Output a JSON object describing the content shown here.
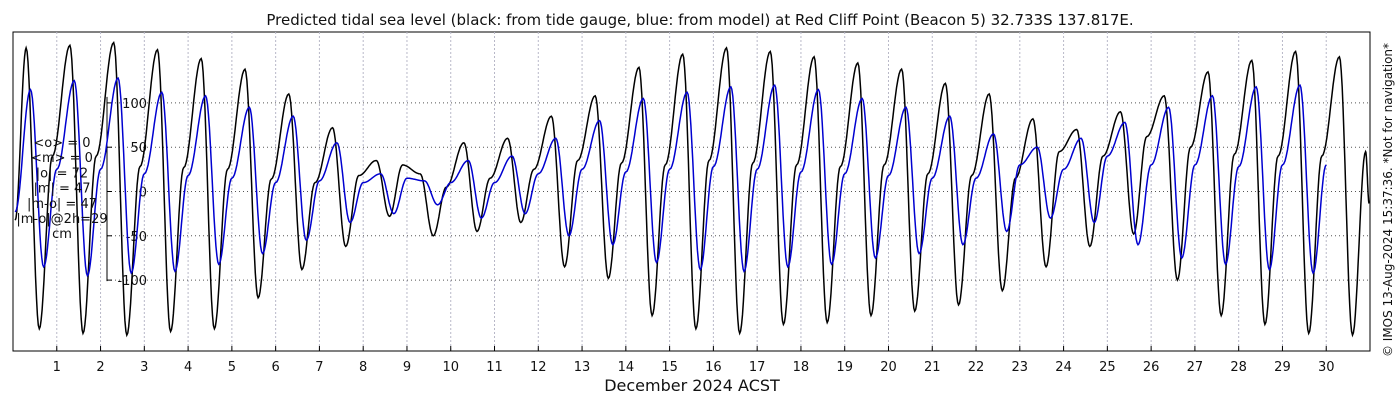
{
  "chart_data": {
    "type": "line",
    "title": "Predicted tidal sea level (black: from tide gauge, blue: from model) at Red Cliff Point (Beacon 5) 32.733S 137.817E.",
    "xlabel": "December 2024 ACST",
    "ylabel": "",
    "x_ticks": [
      "1",
      "2",
      "3",
      "4",
      "5",
      "6",
      "7",
      "8",
      "9",
      "10",
      "11",
      "12",
      "13",
      "14",
      "15",
      "16",
      "17",
      "18",
      "19",
      "20",
      "21",
      "22",
      "23",
      "24",
      "25",
      "26",
      "27",
      "28",
      "29",
      "30"
    ],
    "xlim": [
      0,
      31
    ],
    "y_ticks": [
      100,
      50,
      0,
      -50,
      -100
    ],
    "y_tick_labels": [
      "100",
      "50",
      "0",
      "-50",
      "-100"
    ],
    "ylim": [
      -180,
      180
    ],
    "grid": "dotted-vertical-and-horizontal",
    "stats": [
      "<o> = 0",
      "<m> = 0",
      "|o| = 72",
      "|m| = 47",
      "|m-o| = 47",
      "|m-o|@2h=29",
      "cm"
    ],
    "side_note": "© IMOS 13-Aug-2024 15:37:36. *Not for navigation*",
    "series": [
      {
        "name": "from tide gauge",
        "color": "#000000",
        "peaks_x": [
          0.3,
          0.6,
          0.9,
          1.3,
          1.6,
          1.9,
          2.3,
          2.6,
          2.9,
          3.3,
          3.6,
          3.9,
          4.3,
          4.6,
          4.9,
          5.3,
          5.6,
          5.9,
          6.3,
          6.6,
          6.9,
          7.3,
          7.6,
          7.9,
          8.3,
          8.6,
          8.9,
          9.3,
          9.6,
          9.9,
          10.3,
          10.6,
          10.9,
          11.3,
          11.6,
          11.9,
          12.3,
          12.6,
          12.9,
          13.3,
          13.6,
          13.9,
          14.3,
          14.6,
          14.9,
          15.3,
          15.6,
          15.9,
          16.3,
          16.6,
          16.9,
          17.3,
          17.6,
          17.9,
          18.3,
          18.6,
          18.9,
          19.3,
          19.6,
          19.9,
          20.3,
          20.6,
          20.9,
          21.3,
          21.6,
          21.9,
          22.3,
          22.6,
          22.9,
          23.3,
          23.6,
          23.9,
          24.3,
          24.6,
          24.9,
          25.3,
          25.6,
          25.9,
          26.3,
          26.6,
          26.9,
          27.3,
          27.6,
          27.9,
          28.3,
          28.6,
          28.9,
          29.3,
          29.6,
          29.9,
          30.3,
          30.6,
          30.9
        ],
        "peaks_y": [
          162,
          -155,
          40,
          165,
          -160,
          40,
          168,
          -162,
          28,
          160,
          -158,
          27,
          150,
          -155,
          25,
          138,
          -120,
          14,
          110,
          -88,
          10,
          72,
          -62,
          18,
          35,
          -28,
          30,
          20,
          -50,
          5,
          55,
          -45,
          15,
          60,
          -35,
          25,
          85,
          -85,
          35,
          108,
          -98,
          32,
          140,
          -140,
          30,
          155,
          -155,
          35,
          162,
          -160,
          32,
          158,
          -150,
          30,
          152,
          -148,
          28,
          145,
          -140,
          30,
          138,
          -135,
          20,
          122,
          -128,
          18,
          110,
          -112,
          15,
          82,
          -85,
          45,
          70,
          -62,
          40,
          90,
          -48,
          62,
          108,
          -100,
          50,
          135,
          -140,
          42,
          148,
          -150,
          40,
          158,
          -160,
          40,
          152,
          -162,
          45
        ]
      },
      {
        "name": "from model",
        "color": "#0000d0",
        "peaks_x": [
          0.4,
          0.7,
          1.0,
          1.4,
          1.7,
          2.0,
          2.4,
          2.7,
          3.0,
          3.4,
          3.7,
          4.0,
          4.4,
          4.7,
          5.0,
          5.4,
          5.7,
          6.0,
          6.4,
          6.7,
          7.0,
          7.4,
          7.7,
          8.0,
          8.4,
          8.7,
          9.0,
          9.4,
          9.7,
          10.0,
          10.4,
          10.7,
          11.0,
          11.4,
          11.7,
          12.0,
          12.4,
          12.7,
          13.0,
          13.4,
          13.7,
          14.0,
          14.4,
          14.7,
          15.0,
          15.4,
          15.7,
          16.0,
          16.4,
          16.7,
          17.0,
          17.4,
          17.7,
          18.0,
          18.4,
          18.7,
          19.0,
          19.4,
          19.7,
          20.0,
          20.4,
          20.7,
          21.0,
          21.4,
          21.7,
          22.0,
          22.4,
          22.7,
          23.0,
          23.4,
          23.7,
          24.0,
          24.4,
          24.7,
          25.0,
          25.4,
          25.7,
          26.0,
          26.4,
          26.7,
          27.0,
          27.4,
          27.7,
          28.0,
          28.4,
          28.7,
          29.0,
          29.4,
          29.7,
          30.0,
          30.4,
          30.7
        ],
        "peaks_y": [
          115,
          -85,
          25,
          125,
          -95,
          25,
          128,
          -92,
          20,
          112,
          -90,
          18,
          108,
          -82,
          15,
          95,
          -70,
          10,
          85,
          -55,
          12,
          55,
          -35,
          10,
          20,
          -25,
          15,
          12,
          -15,
          10,
          35,
          -30,
          10,
          40,
          -25,
          20,
          60,
          -50,
          25,
          80,
          -60,
          22,
          105,
          -80,
          25,
          112,
          -88,
          28,
          118,
          -90,
          25,
          120,
          -85,
          22,
          115,
          -82,
          20,
          105,
          -75,
          18,
          95,
          -70,
          15,
          85,
          -60,
          15,
          65,
          -45,
          30,
          50,
          -30,
          25,
          60,
          -35,
          40,
          78,
          -60,
          30,
          95,
          -75,
          30,
          108,
          -82,
          28,
          118,
          -88,
          30,
          120,
          -92,
          30
        ]
      }
    ]
  }
}
